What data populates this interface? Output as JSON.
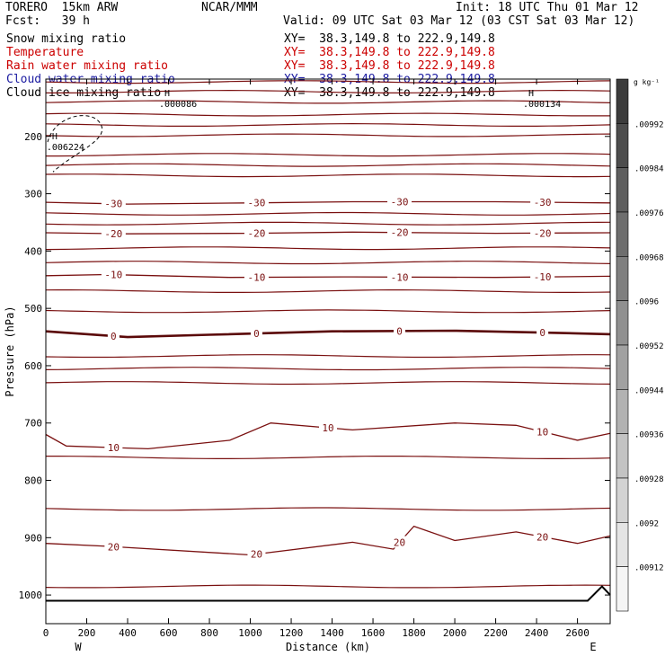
{
  "header": {
    "model": "TORERO  15km ARW",
    "center": "NCAR/MMM",
    "init": "Init: 18 UTC Thu 01 Mar 12",
    "fcst": "Fcst:   39 h",
    "valid": "Valid: 09 UTC Sat 03 Mar 12 (03 CST Sat 03 Mar 12)"
  },
  "fields": [
    {
      "label": "Snow mixing ratio",
      "xy": "XY=  38.3,149.8 to 222.9,149.8",
      "color": "#000000"
    },
    {
      "label": "Temperature",
      "xy": "XY=  38.3,149.8 to 222.9,149.8",
      "color": "#cc0000"
    },
    {
      "label": "Rain water mixing ratio",
      "xy": "XY=  38.3,149.8 to 222.9,149.8",
      "color": "#cc0000"
    },
    {
      "label": "Cloud water mixing ratio",
      "xy": "XY=  38.3,149.8 to 222.9,149.8",
      "color": "#1a1aa0"
    },
    {
      "label": "Cloud ice mixing ratio",
      "xy": "XY=  38.3,149.8 to 222.9,149.8",
      "color": "#000000"
    }
  ],
  "chart_data": {
    "type": "line",
    "subtype": "vertical cross-section contour",
    "xlabel": "Distance (km)",
    "ylabel": "Pressure (hPa)",
    "x_ticks": [
      0,
      200,
      400,
      600,
      800,
      1000,
      1200,
      1400,
      1600,
      1800,
      2000,
      2200,
      2400,
      2600
    ],
    "y_ticks": [
      200,
      300,
      400,
      500,
      600,
      700,
      800,
      900,
      1000
    ],
    "xlim": [
      0,
      2760
    ],
    "ylim": [
      1050,
      100
    ],
    "x_end_labels": {
      "left": "W",
      "right": "E"
    },
    "highs": [
      {
        "marker": "H",
        "label": ".000086",
        "x": 580,
        "p": 130
      },
      {
        "marker": "H",
        "label": ".000134",
        "x": 2360,
        "p": 130
      },
      {
        "marker": "H",
        "label": ".006224",
        "x": 30,
        "p": 205
      }
    ],
    "isotherms": [
      {
        "value": -30,
        "labels": [
          "-30",
          "-30",
          "-30",
          "-30"
        ],
        "points": [
          [
            0,
            315
          ],
          [
            400,
            318
          ],
          [
            1000,
            316
          ],
          [
            1500,
            314
          ],
          [
            2200,
            314
          ],
          [
            2760,
            316
          ]
        ]
      },
      {
        "value": -20,
        "labels": [
          "-20",
          "-20",
          "-20",
          "-20"
        ],
        "points": [
          [
            0,
            368
          ],
          [
            400,
            370
          ],
          [
            1000,
            369
          ],
          [
            1500,
            367
          ],
          [
            2200,
            369
          ],
          [
            2760,
            368
          ]
        ]
      },
      {
        "value": -10,
        "labels": [
          "-10",
          "-10",
          "-10",
          "-10"
        ],
        "points": [
          [
            0,
            443
          ],
          [
            300,
            441
          ],
          [
            900,
            446
          ],
          [
            1500,
            445
          ],
          [
            2200,
            446
          ],
          [
            2760,
            444
          ]
        ]
      },
      {
        "value": 0,
        "labels": [
          "0",
          "0",
          "0",
          "0"
        ],
        "points": [
          [
            0,
            540
          ],
          [
            400,
            550
          ],
          [
            800,
            546
          ],
          [
            1400,
            540
          ],
          [
            2000,
            539
          ],
          [
            2400,
            542
          ],
          [
            2760,
            545
          ]
        ]
      },
      {
        "value": 10,
        "labels": [
          "10",
          "10",
          "10"
        ],
        "points": [
          [
            0,
            720
          ],
          [
            100,
            740
          ],
          [
            500,
            745
          ],
          [
            900,
            730
          ],
          [
            1100,
            700
          ],
          [
            1500,
            712
          ],
          [
            2000,
            700
          ],
          [
            2300,
            704
          ],
          [
            2600,
            730
          ],
          [
            2760,
            718
          ]
        ]
      },
      {
        "value": 20,
        "labels": [
          "20",
          "20",
          "20",
          "20"
        ],
        "points": [
          [
            0,
            910
          ],
          [
            300,
            915
          ],
          [
            1000,
            930
          ],
          [
            1500,
            908
          ],
          [
            1700,
            920
          ],
          [
            1800,
            880
          ],
          [
            2000,
            905
          ],
          [
            2300,
            890
          ],
          [
            2600,
            910
          ],
          [
            2760,
            897
          ]
        ]
      }
    ],
    "unlabeled_contour_pressures": [
      105,
      122,
      140,
      162,
      180,
      198,
      232,
      250,
      268,
      335,
      352,
      395,
      420,
      470,
      505,
      583,
      605,
      630,
      760,
      850,
      985
    ],
    "colorbar": {
      "unit": "g kg⁻¹",
      "ticks": [
        ".00992",
        ".00984",
        ".00976",
        ".00968",
        ".0096",
        ".00952",
        ".00944",
        ".00936",
        ".00928",
        ".0092",
        ".00912"
      ]
    }
  }
}
